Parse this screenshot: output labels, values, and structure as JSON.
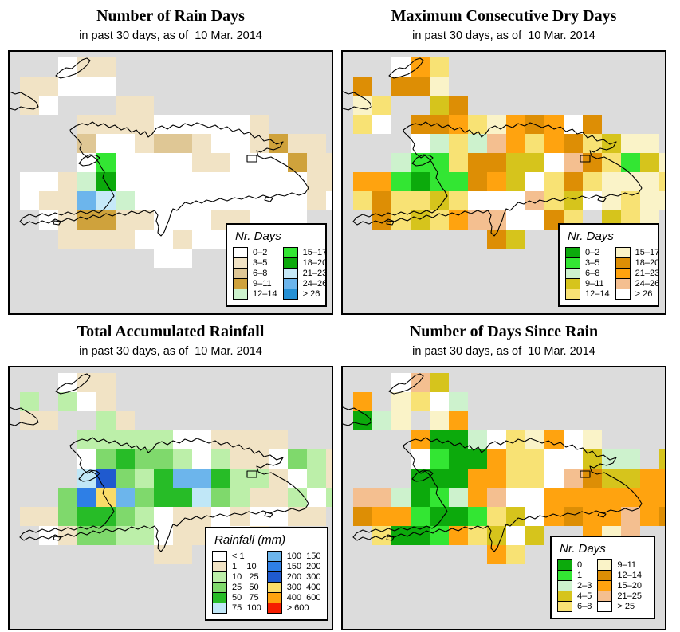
{
  "figure": {
    "background": "#FFFFFF",
    "map_background": "#DCDCDC",
    "coast_color": "#000000"
  },
  "chart_data": [
    {
      "type": "heatmap",
      "title": "Number of Rain Days",
      "subtitle": "in past 30 days, as of  10 Mar. 2014",
      "legend_title": "Nr. Days",
      "classes": [
        {
          "label": "0–2",
          "color": "#FFFFFF"
        },
        {
          "label": "3–5",
          "color": "#F1E3C5"
        },
        {
          "label": "6–8",
          "color": "#DFC795"
        },
        {
          "label": "9–11",
          "color": "#CFA23C"
        },
        {
          "label": "12–14",
          "color": "#CDF2CD"
        },
        {
          "label": "15–17",
          "color": "#33E633"
        },
        {
          "label": "18–20",
          "color": "#0CAA0C"
        },
        {
          "label": "21–23",
          "color": "#C6E9F8"
        },
        {
          "label": "24–26",
          "color": "#6CB5EC"
        },
        {
          "label": "> 26",
          "color": "#2590D5"
        }
      ],
      "palette": {
        "w": "#FFFFFF",
        "a": "#F1E3C5",
        "b": "#DFC795",
        "c": "#CFA23C",
        "d": "#CDF2CD",
        "e": "#33E633",
        "f": "#0CAA0C",
        "g": "#C6E9F8",
        "h": "#6CB5EC",
        "i": "#2590D5"
      },
      "grid": [
        "..waa............",
        "aawww............",
        "aw...aa..........",
        "...aaaawwwwwa....",
        "...bwwabbawwacaa.",
        "...wewwwwaawwwcaa",
        "wwadfwwwwwwwwwwaa",
        "waahgdwwwwwwwwwaw",
        ".waccaawwwaawww..",
        "..aaaawwawwa.....",
        ".......ww........",
        ".................",
        ".................",
        "................."
      ]
    },
    {
      "type": "heatmap",
      "title": "Maximum Consecutive Dry Days",
      "subtitle": "in past 30 days, as of  10 Mar. 2014",
      "legend_title": "Nr. Days",
      "classes": [
        {
          "label": "0–2",
          "color": "#0CAA0C"
        },
        {
          "label": "3–5",
          "color": "#33E633"
        },
        {
          "label": "6–8",
          "color": "#CDF2CD"
        },
        {
          "label": "9–11",
          "color": "#D6C41C"
        },
        {
          "label": "12–14",
          "color": "#F8E274"
        },
        {
          "label": "15–17",
          "color": "#FAF3C8"
        },
        {
          "label": "18–20",
          "color": "#DD8E05"
        },
        {
          "label": "21–23",
          "color": "#FFA30F"
        },
        {
          "label": "24–26",
          "color": "#F4BF90"
        },
        {
          "label": "> 26",
          "color": "#FFFFFF"
        }
      ],
      "palette": {
        "G": "#0CAA0C",
        "E": "#33E633",
        "d": "#CDF2CD",
        "k": "#D6C41C",
        "y": "#F8E274",
        "p": "#FAF3C8",
        "D": "#DD8E05",
        "o": "#FFA30F",
        "h": "#F4BF90",
        "w": "#FFFFFF"
      },
      "grid": [
        "..woy............",
        "D.DDp............",
        "py..kD...........",
        "yw.DDoypoDowD....",
        "...wdydhoyoDykpp.",
        "..dEEyDDkkwhDyEkp",
        "ooEGEEDokwyDypppy",
        "yDyykywwwhykwpypp",
        ".DykyohhwwDy.kyp.",
        ".......Dk........",
        ".................",
        ".................",
        ".................",
        "................."
      ]
    },
    {
      "type": "heatmap",
      "title": "Total Accumulated Rainfall",
      "subtitle": "in past 30 days, as of  10 Mar. 2014",
      "legend_title": "Rainfall (mm)",
      "classes": [
        {
          "label": "< 1",
          "color": "#FFFFFF"
        },
        {
          "label": "1    10",
          "color": "#F1E3C5"
        },
        {
          "label": "10   25",
          "color": "#BCEFA9"
        },
        {
          "label": "25   50",
          "color": "#7FD96C"
        },
        {
          "label": "50   75",
          "color": "#27BC27"
        },
        {
          "label": "75  100",
          "color": "#C0E7F7"
        },
        {
          "label": "100  150",
          "color": "#6CB5EC"
        },
        {
          "label": "150  200",
          "color": "#2E7FE6"
        },
        {
          "label": "200  300",
          "color": "#1F5ACF"
        },
        {
          "label": "300  400",
          "color": "#FADC69"
        },
        {
          "label": "400  600",
          "color": "#FFA30F"
        },
        {
          "label": "> 600",
          "color": "#F51D00"
        }
      ],
      "palette": {
        "w": "#FFFFFF",
        "a": "#F1E3C5",
        "p": "#BCEFA9",
        "m": "#7FD96C",
        "g": "#27BC27",
        "l": "#C0E7F7",
        "s": "#6CB5EC",
        "B": "#2E7FE6",
        "N": "#1F5ACF",
        "Y": "#FADC69",
        "O": "#FFA30F",
        "R": "#F51D00"
      },
      "grid": [
        "..waa............",
        "p.pwa............",
        "aa..pa...........",
        "...pppppwwaaaa...",
        "...wmgmmpwpaawmpa",
        "...lNmpgssgppawpa",
        "..mBYsmgglmpaapwp",
        "aamggmpwaawawwaa.",
        ".wammppwaawwa....",
        ".......aa........",
        ".................",
        ".................",
        ".................",
        "................."
      ]
    },
    {
      "type": "heatmap",
      "title": "Number of Days Since Rain",
      "subtitle": "in past 30 days, as of  10 Mar. 2014",
      "legend_title": "Nr. Days",
      "classes": [
        {
          "label": "0",
          "color": "#0CAA0C"
        },
        {
          "label": "1",
          "color": "#33E633"
        },
        {
          "label": "2–3",
          "color": "#CDF2CD"
        },
        {
          "label": "4–5",
          "color": "#D6C41C"
        },
        {
          "label": "6–8",
          "color": "#F8E274"
        },
        {
          "label": "9–11",
          "color": "#FAF3C8"
        },
        {
          "label": "12–14",
          "color": "#DD8E05"
        },
        {
          "label": "15–20",
          "color": "#FFA30F"
        },
        {
          "label": "21–25",
          "color": "#F4BF90"
        },
        {
          "label": "> 25",
          "color": "#FFFFFF"
        }
      ],
      "palette": {
        "G": "#0CAA0C",
        "E": "#33E633",
        "d": "#CDF2CD",
        "k": "#D6C41C",
        "y": "#F8E274",
        "p": "#FAF3C8",
        "D": "#DD8E05",
        "o": "#FFA30F",
        "h": "#F4BF90",
        "w": "#FFFFFF"
      },
      "grid": [
        "..whk............",
        "o.pywd...........",
        "Gdp.po...........",
        "...oGGdwypowp....",
        "...wEGGoyywwkdd.k",
        "...GGGooyywhDkkoo",
        "hhdGEdohwwooooooo",
        "DooEGGEykwoDoohoD",
        ".yGGEoykwk..oph..",
        ".......oy........",
        ".................",
        ".................",
        ".................",
        "................."
      ]
    }
  ]
}
